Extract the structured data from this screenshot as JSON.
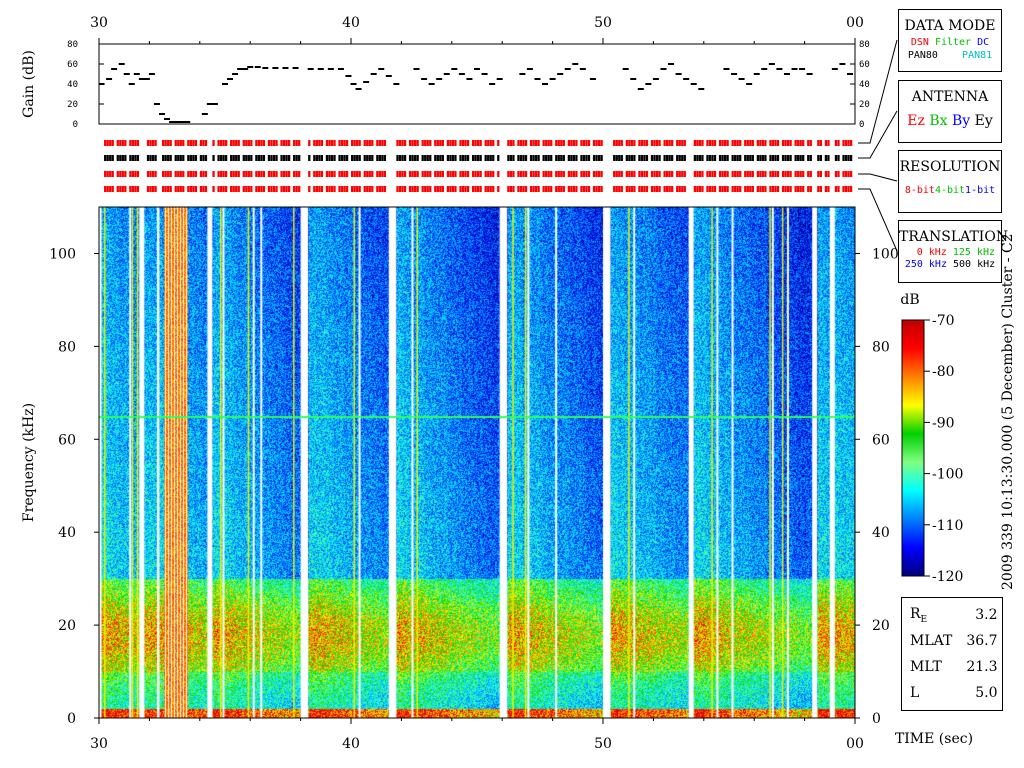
{
  "chart_data": {
    "type": "heatmap",
    "time_axis": {
      "ticks": [
        "30",
        "40",
        "50",
        "00"
      ],
      "tick_values_sec": [
        30,
        40,
        50,
        60
      ],
      "range_sec": [
        30,
        60
      ],
      "label": "TIME (sec)"
    },
    "gain_panel": {
      "ylabel": "Gain (dB)",
      "ticks": [
        "0",
        "20",
        "40",
        "60",
        "80"
      ],
      "ylim": [
        0,
        80
      ],
      "segments": [
        {
          "x": [
            30.1,
            30.4,
            30.6,
            30.9,
            31.1,
            31.3,
            31.5,
            31.7,
            31.9,
            32.1
          ],
          "y": [
            40,
            45,
            55,
            60,
            50,
            40,
            50,
            45,
            45,
            50
          ]
        },
        {
          "x": [
            32.3,
            32.5,
            32.7,
            32.9,
            33.1,
            33.3,
            33.5
          ],
          "y": [
            20,
            10,
            5,
            2,
            2,
            2,
            2
          ]
        },
        {
          "x": [
            34.2,
            34.4,
            34.6
          ],
          "y": [
            10,
            20,
            20
          ]
        },
        {
          "x": [
            35.0,
            35.2,
            35.4,
            35.6,
            35.8,
            36.0,
            36.3,
            36.6,
            37.0,
            37.4,
            37.8
          ],
          "y": [
            40,
            45,
            50,
            55,
            55,
            57,
            57,
            56,
            56,
            56,
            56
          ]
        },
        {
          "x": [
            38.4,
            38.8,
            39.2,
            39.6,
            39.9,
            40.1,
            40.3,
            40.6,
            40.9,
            41.2,
            41.5,
            41.8
          ],
          "y": [
            55,
            55,
            55,
            55,
            48,
            40,
            35,
            42,
            50,
            55,
            48,
            40
          ]
        },
        {
          "x": [
            42.6,
            42.9,
            43.2,
            43.5,
            43.8,
            44.1,
            44.4,
            44.7,
            45.0,
            45.3,
            45.6,
            45.9
          ],
          "y": [
            55,
            45,
            40,
            45,
            50,
            55,
            50,
            45,
            55,
            50,
            40,
            45
          ]
        },
        {
          "x": [
            46.8,
            47.1,
            47.4,
            47.7,
            48.0,
            48.3,
            48.6,
            48.9,
            49.2,
            49.6
          ],
          "y": [
            50,
            55,
            45,
            40,
            45,
            50,
            55,
            60,
            55,
            45
          ]
        },
        {
          "x": [
            50.9,
            51.2,
            51.5,
            51.8,
            52.1,
            52.4,
            52.7,
            53.0,
            53.3,
            53.6,
            53.9
          ],
          "y": [
            55,
            45,
            35,
            40,
            45,
            55,
            60,
            50,
            45,
            40,
            35
          ]
        },
        {
          "x": [
            54.9,
            55.2,
            55.5,
            55.8,
            56.1,
            56.4,
            56.7,
            57.0,
            57.3,
            57.6,
            57.9,
            58.2
          ],
          "y": [
            55,
            50,
            45,
            40,
            50,
            55,
            60,
            55,
            50,
            55,
            55,
            50
          ]
        },
        {
          "x": [
            59.2,
            59.5,
            59.8
          ],
          "y": [
            55,
            60,
            50
          ]
        }
      ]
    },
    "mode_strips": {
      "rows": 4,
      "row_colors": [
        "#ff0000",
        "#000000",
        "#ff0000",
        "#ff0000"
      ]
    },
    "spectrogram": {
      "ylabel": "Frequency (kHz)",
      "yticks": [
        "0",
        "20",
        "40",
        "60",
        "80",
        "100"
      ],
      "ylim": [
        0,
        110
      ],
      "xlim": [
        30,
        60
      ],
      "gaps_sec": [
        [
          30.0,
          30.1
        ],
        [
          31.6,
          31.8
        ],
        [
          32.3,
          32.4
        ],
        [
          34.3,
          34.5
        ],
        [
          38.0,
          38.3
        ],
        [
          41.5,
          41.8
        ],
        [
          45.9,
          46.2
        ],
        [
          50.0,
          50.3
        ],
        [
          53.4,
          53.6
        ],
        [
          58.3,
          58.5
        ],
        [
          59.0,
          59.2
        ]
      ],
      "white_lines_sec": [
        31.2,
        34.9,
        36.1,
        36.4,
        40.3,
        42.4,
        47.0,
        48.1,
        51.2,
        54.5,
        55.1,
        56.7,
        57.3
      ],
      "yellow_lines_sec": [
        30.2,
        31.3,
        31.5,
        34.8,
        35.9,
        37.7,
        40.1,
        42.6,
        46.4,
        46.9,
        51.0,
        54.3,
        56.6,
        57.1
      ],
      "red_band_sec": [
        32.6,
        33.5
      ],
      "green_line_khz": 65,
      "low_band_khz": [
        0,
        30
      ],
      "low_band_peak_khz": 18
    },
    "colorbar": {
      "label": "dB",
      "ticks": [
        "-70",
        "-80",
        "-90",
        "-100",
        "-110",
        "-120"
      ],
      "range": [
        -120,
        -70
      ],
      "colors": [
        "#00007f",
        "#0000ff",
        "#0080ff",
        "#00ffff",
        "#80ff80",
        "#00d000",
        "#ffff00",
        "#ff8000",
        "#ff0000",
        "#c00000"
      ]
    }
  },
  "side_text": "2009 339 10:13:30.000 (5 December)   Cluster - C2",
  "legend": {
    "data_mode": {
      "title": "DATA MODE",
      "row1": [
        {
          "text": "DSN",
          "color": "#ff0000"
        },
        {
          "text": "Filter",
          "color": "#00c000"
        },
        {
          "text": "DC",
          "color": "#0000ff"
        }
      ],
      "row2": [
        {
          "text": "PAN80",
          "color": "#000000"
        },
        {
          "text": "PAN81",
          "color": "#00c0c0"
        }
      ]
    },
    "antenna": {
      "title": "ANTENNA",
      "items": [
        {
          "text": "Ez",
          "color": "#ff0000"
        },
        {
          "text": "Bx",
          "color": "#00c000"
        },
        {
          "text": "By",
          "color": "#0000ff"
        },
        {
          "text": "Ey",
          "color": "#000000"
        }
      ]
    },
    "resolution": {
      "title": "RESOLUTION",
      "items": [
        {
          "text": "8-bit",
          "color": "#ff0000"
        },
        {
          "text": "4-bit",
          "color": "#00c000"
        },
        {
          "text": "1-bit",
          "color": "#0000ff"
        }
      ]
    },
    "translation": {
      "title": "TRANSLATION",
      "row1": [
        {
          "text": "0 kHz",
          "color": "#ff0000"
        },
        {
          "text": "125 kHz",
          "color": "#00c000"
        }
      ],
      "row2": [
        {
          "text": "250 kHz",
          "color": "#0000ff"
        },
        {
          "text": "500 kHz",
          "color": "#000000"
        }
      ]
    }
  },
  "info": [
    {
      "label": "R",
      "sub": "E",
      "value": "3.2"
    },
    {
      "label": "MLAT",
      "sub": "",
      "value": "36.7"
    },
    {
      "label": "MLT",
      "sub": "",
      "value": "21.3"
    },
    {
      "label": "L",
      "sub": "",
      "value": "5.0"
    }
  ]
}
